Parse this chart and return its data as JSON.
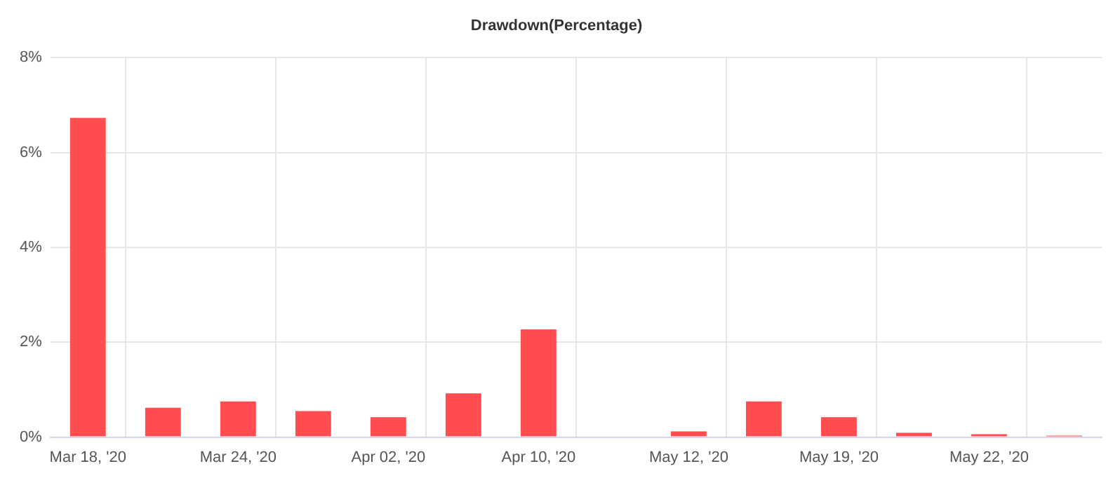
{
  "chart_data": {
    "type": "bar",
    "title": "Drawdown(Percentage)",
    "categories": [
      "Mar 18, '20",
      null,
      "Mar 24, '20",
      null,
      "Apr 02, '20",
      null,
      "Apr 10, '20",
      null,
      "May 12, '20",
      null,
      "May 19, '20",
      null,
      "May 22, '20",
      null
    ],
    "values": [
      6.73,
      0.62,
      0.75,
      0.55,
      0.42,
      0.92,
      2.27,
      0,
      0.12,
      0.75,
      0.42,
      0.09,
      0.06,
      0.03
    ],
    "color": "#ff4d50",
    "ylim": [
      0,
      8
    ],
    "yticks": [
      {
        "value": 0,
        "label": "0%"
      },
      {
        "value": 2,
        "label": "2%"
      },
      {
        "value": 4,
        "label": "4%"
      },
      {
        "value": 6,
        "label": "6%"
      },
      {
        "value": 8,
        "label": "8%"
      }
    ],
    "grid": true,
    "legend": false
  }
}
